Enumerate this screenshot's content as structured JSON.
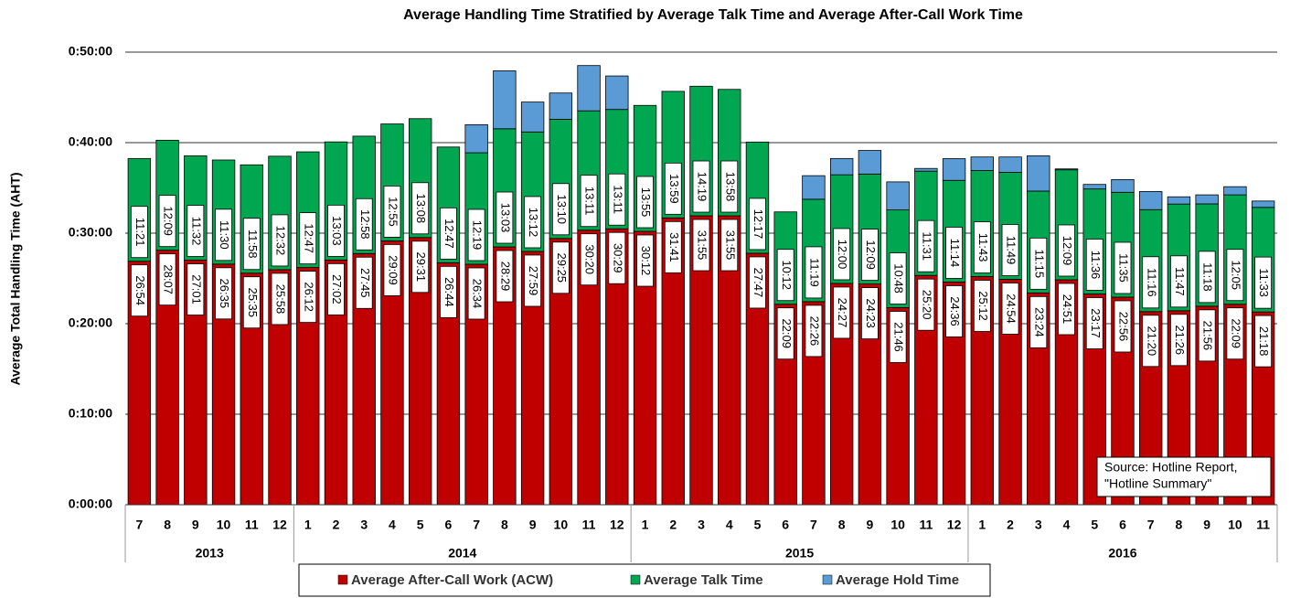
{
  "chart_data": {
    "type": "stacked_bar",
    "title": "Average Handling Time Stratified by Average Talk Time and Average After-Call Work Time",
    "y_label": "Average Total Handling Time (AHT)",
    "annotation": [
      "Source: Hotline Report,",
      "\"Hotline Summary\""
    ],
    "categories": [
      "7",
      "8",
      "9",
      "10",
      "11",
      "12",
      "1",
      "2",
      "3",
      "4",
      "5",
      "6",
      "7",
      "8",
      "9",
      "10",
      "11",
      "12",
      "1",
      "2",
      "3",
      "4",
      "5",
      "6",
      "7",
      "8",
      "9",
      "10",
      "11",
      "12",
      "1",
      "2",
      "3",
      "4",
      "5",
      "6",
      "7",
      "8",
      "9",
      "10",
      "11"
    ],
    "category_groups": [
      {
        "label": "2013",
        "span": 6
      },
      {
        "label": "2014",
        "span": 12
      },
      {
        "label": "2015",
        "span": 12
      },
      {
        "label": "2016",
        "span": 11
      }
    ],
    "ylim": [
      0,
      50
    ],
    "yticks": [
      {
        "value": 0,
        "label": "0:00:00"
      },
      {
        "value": 10,
        "label": "0:10:00"
      },
      {
        "value": 20,
        "label": "0:20:00"
      },
      {
        "value": 30,
        "label": "0:30:00"
      },
      {
        "value": 40,
        "label": "0:40:00"
      },
      {
        "value": 50,
        "label": "0:50:00"
      }
    ],
    "grid": true,
    "legend": "bottom",
    "series": [
      {
        "name": "Average After-Call Work (ACW)",
        "color": "#c00000",
        "values": [
          26.9,
          28.1167,
          27.0167,
          26.5833,
          25.5833,
          25.9667,
          26.2,
          27.0333,
          27.75,
          29.15,
          29.5167,
          26.7333,
          26.5667,
          28.4833,
          27.9833,
          29.4167,
          30.3333,
          30.4833,
          30.2,
          31.6833,
          31.9167,
          31.9167,
          27.7833,
          22.15,
          22.4333,
          24.45,
          24.3833,
          21.7667,
          25.3333,
          24.6,
          25.2,
          24.9,
          23.4,
          24.85,
          23.2833,
          22.9333,
          21.3333,
          21.4333,
          21.9333,
          22.15,
          21.3
        ],
        "value_labels": [
          "26:54",
          "28:07",
          "27:01",
          "26:35",
          "25:35",
          "25:58",
          "26:12",
          "27:02",
          "27:45",
          "29:09",
          "29:31",
          "26:44",
          "26:34",
          "28:29",
          "27:59",
          "29:25",
          "30:20",
          "30:29",
          "30:12",
          "31:41",
          "31:55",
          "31:55",
          "27:47",
          "22:09",
          "22:26",
          "24:27",
          "24:23",
          "21:46",
          "25:20",
          "24:36",
          "25:12",
          "24:54",
          "23:24",
          "24:51",
          "23:17",
          "22:56",
          "21:20",
          "21:26",
          "21:56",
          "22:09",
          "21:18"
        ]
      },
      {
        "name": "Average Talk Time",
        "color": "#00a650",
        "values": [
          11.35,
          12.15,
          11.5333,
          11.5,
          11.9667,
          12.5333,
          12.7833,
          13.05,
          12.9667,
          12.9167,
          13.1333,
          12.7833,
          12.3167,
          13.05,
          13.2,
          13.1667,
          13.1833,
          13.1833,
          13.9167,
          13.9833,
          14.3167,
          13.9667,
          12.2833,
          10.2,
          11.3167,
          12,
          12.15,
          10.8,
          11.5167,
          11.2333,
          11.7167,
          11.8167,
          11.25,
          12.15,
          11.6,
          11.5833,
          11.2667,
          11.7833,
          11.3,
          12.0833,
          11.55
        ],
        "value_labels": [
          "11:21",
          "12:09",
          "11:32",
          "11:30",
          "11:58",
          "12:32",
          "12:47",
          "13:03",
          "12:58",
          "12:55",
          "13:08",
          "12:47",
          "12:19",
          "13:03",
          "13:12",
          "13:10",
          "13:11",
          "13:11",
          "13:55",
          "13:59",
          "14:19",
          "13:58",
          "12:17",
          "10:12",
          "11:19",
          "12:00",
          "12:09",
          "10:48",
          "11:31",
          "11:14",
          "11:43",
          "11:49",
          "11:15",
          "12:09",
          "11:36",
          "11:35",
          "11:16",
          "11:47",
          "11:18",
          "12:05",
          "11:33"
        ]
      },
      {
        "name": "Average Hold Time",
        "color": "#5b9bd5",
        "values": [
          0,
          0,
          0,
          0,
          0,
          0,
          0,
          0,
          0,
          0,
          0,
          0,
          3.1,
          6.4,
          3.3,
          2.9,
          5.0,
          3.7,
          0,
          0,
          0,
          0,
          0,
          0,
          2.6,
          1.8,
          2.6,
          3.1,
          0.3,
          2.4,
          1.5,
          1.7,
          3.9,
          0.1,
          0.5,
          1.4,
          2.0,
          0.8,
          1.0,
          0.9,
          0.7
        ]
      }
    ]
  }
}
